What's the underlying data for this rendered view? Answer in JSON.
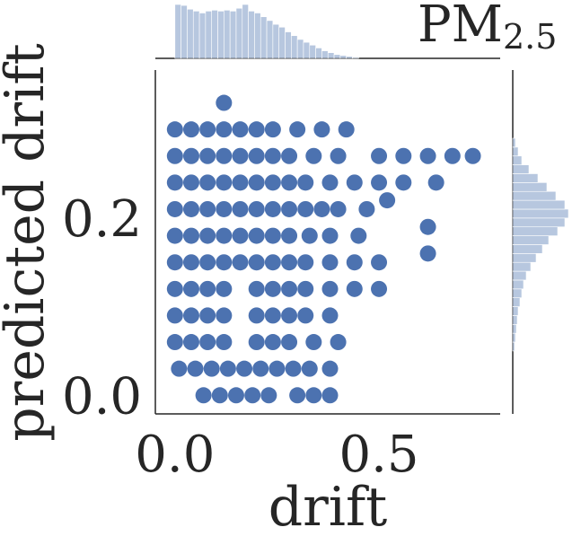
{
  "chart_data": [
    {
      "type": "scatter",
      "title": "PM",
      "title_subscript": "2.5",
      "x_label": "drift",
      "y_label": "predicted drift",
      "color": "#4c72b0",
      "xlim": [
        -0.048,
        0.797
      ],
      "ylim": [
        -0.021,
        0.367
      ],
      "xticks": [
        {
          "value": 0,
          "label": "0.0"
        },
        {
          "value": 0.5,
          "label": "0.5"
        }
      ],
      "yticks": [
        {
          "value": 0,
          "label": "0.0"
        },
        {
          "value": 0.2,
          "label": "0.2"
        }
      ],
      "x": [
        0,
        0.04,
        0.08,
        0.12,
        0.16,
        0.2,
        0.24,
        0.3,
        0.36,
        0.42,
        0,
        0.04,
        0.08,
        0.12,
        0.16,
        0.2,
        0.24,
        0.28,
        0.34,
        0.4,
        0.5,
        0.56,
        0.62,
        0.68,
        0.73,
        0,
        0.04,
        0.08,
        0.12,
        0.16,
        0.2,
        0.24,
        0.28,
        0.32,
        0.38,
        0.44,
        0.5,
        0.56,
        0.64,
        0,
        0.04,
        0.08,
        0.12,
        0.16,
        0.2,
        0.24,
        0.28,
        0.32,
        0.36,
        0.4,
        0.47,
        0,
        0.04,
        0.08,
        0.12,
        0.16,
        0.2,
        0.24,
        0.28,
        0.33,
        0.38,
        0.45,
        0,
        0.04,
        0.08,
        0.12,
        0.16,
        0.2,
        0.24,
        0.28,
        0.32,
        0.38,
        0.44,
        0.5,
        0,
        0.04,
        0.08,
        0.12,
        0.2,
        0.24,
        0.28,
        0.32,
        0.38,
        0.44,
        0.5,
        0,
        0.04,
        0.08,
        0.12,
        0.2,
        0.24,
        0.28,
        0.32,
        0.38,
        0,
        0.04,
        0.08,
        0.12,
        0.2,
        0.24,
        0.28,
        0.34,
        0.4,
        0.01,
        0.05,
        0.09,
        0.13,
        0.17,
        0.21,
        0.25,
        0.29,
        0.33,
        0.38,
        0.07,
        0.11,
        0.15,
        0.19,
        0.23,
        0.3,
        0.34,
        0.38,
        0.62,
        0.62,
        0.52,
        0.12
      ],
      "y": [
        0.3,
        0.3,
        0.3,
        0.3,
        0.3,
        0.3,
        0.3,
        0.3,
        0.3,
        0.3,
        0.27,
        0.27,
        0.27,
        0.27,
        0.27,
        0.27,
        0.27,
        0.27,
        0.27,
        0.27,
        0.27,
        0.27,
        0.27,
        0.27,
        0.27,
        0.24,
        0.24,
        0.24,
        0.24,
        0.24,
        0.24,
        0.24,
        0.24,
        0.24,
        0.24,
        0.24,
        0.24,
        0.24,
        0.24,
        0.21,
        0.21,
        0.21,
        0.21,
        0.21,
        0.21,
        0.21,
        0.21,
        0.21,
        0.21,
        0.21,
        0.21,
        0.18,
        0.18,
        0.18,
        0.18,
        0.18,
        0.18,
        0.18,
        0.18,
        0.18,
        0.18,
        0.18,
        0.15,
        0.15,
        0.15,
        0.15,
        0.15,
        0.15,
        0.15,
        0.15,
        0.15,
        0.15,
        0.15,
        0.15,
        0.12,
        0.12,
        0.12,
        0.12,
        0.12,
        0.12,
        0.12,
        0.12,
        0.12,
        0.12,
        0.12,
        0.09,
        0.09,
        0.09,
        0.09,
        0.09,
        0.09,
        0.09,
        0.09,
        0.09,
        0.06,
        0.06,
        0.06,
        0.06,
        0.06,
        0.06,
        0.06,
        0.06,
        0.06,
        0.03,
        0.03,
        0.03,
        0.03,
        0.03,
        0.03,
        0.03,
        0.03,
        0.03,
        0.03,
        0,
        0,
        0,
        0,
        0,
        0,
        0,
        0,
        0.16,
        0.19,
        0.22,
        0.33
      ]
    },
    {
      "type": "histogram",
      "orientation": "vertical",
      "color": "#4c72b0",
      "bins": [
        0,
        0.015,
        0.03,
        0.045,
        0.06,
        0.075,
        0.09,
        0.105,
        0.12,
        0.135,
        0.15,
        0.165,
        0.18,
        0.195,
        0.21,
        0.225,
        0.24,
        0.255,
        0.27,
        0.285,
        0.3,
        0.315,
        0.33,
        0.345,
        0.36,
        0.375,
        0.39,
        0.405,
        0.42,
        0.435,
        0.45
      ],
      "values": [
        57,
        56,
        52,
        50,
        48,
        50,
        51,
        50,
        51,
        50,
        53,
        57,
        50,
        48,
        44,
        40,
        36,
        33,
        28,
        24,
        20,
        17,
        14,
        11,
        8,
        6,
        4,
        3,
        2,
        1
      ]
    },
    {
      "type": "histogram",
      "orientation": "horizontal",
      "color": "#4c72b0",
      "bins": [
        0.05,
        0.06,
        0.07,
        0.08,
        0.09,
        0.1,
        0.11,
        0.12,
        0.13,
        0.14,
        0.15,
        0.16,
        0.17,
        0.18,
        0.19,
        0.2,
        0.21,
        0.22,
        0.23,
        0.24,
        0.25,
        0.26,
        0.27,
        0.28,
        0.29
      ],
      "values": [
        2,
        3,
        4,
        5,
        6,
        8,
        10,
        12,
        15,
        20,
        26,
        33,
        40,
        50,
        58,
        62,
        58,
        48,
        38,
        28,
        18,
        10,
        6,
        3
      ]
    }
  ]
}
